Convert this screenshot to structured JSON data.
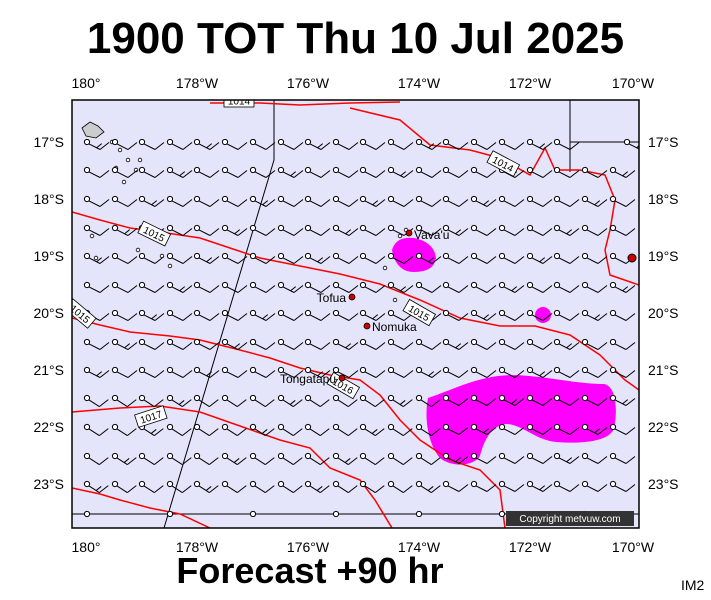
{
  "title": "1900 TOT Thu 10 Jul 2025",
  "forecast_label": "Forecast +90 hr",
  "image_code": "IM2",
  "copyright": "Copyright metvuw.com",
  "colors": {
    "ocean": "#e4e4fb",
    "isobar": "#ff0000",
    "rain": "#ff00ff",
    "city": "#cc0000",
    "barb": "#000000"
  },
  "axes": {
    "longitude_labels": [
      "180°",
      "178°W",
      "176°W",
      "174°W",
      "172°W",
      "170°W"
    ],
    "latitude_labels": [
      "17°S",
      "18°S",
      "19°S",
      "20°S",
      "21°S",
      "22°S",
      "23°S"
    ]
  },
  "places": [
    {
      "name": "Vava'u"
    },
    {
      "name": "Tofua"
    },
    {
      "name": "Nomuka"
    },
    {
      "name": "Tongatapu"
    }
  ],
  "isobar_labels": [
    "1014",
    "1014",
    "1015",
    "1015",
    "1015",
    "1016",
    "1017"
  ],
  "wind_barb_icon": "wind-barb-icon"
}
